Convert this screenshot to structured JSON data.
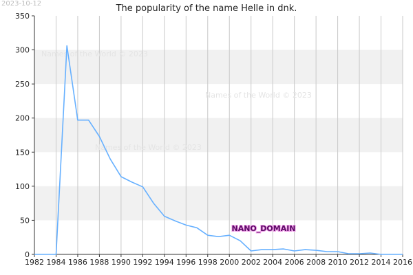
{
  "stamp": "2023-10-12",
  "watermark": "Names of the World © 2023",
  "domain_label": "NANO_DOMAIN",
  "colors": {
    "line": "#66b0ff",
    "band": "#f1f1f1",
    "grid": "#c8c8c8",
    "axis": "#333333"
  },
  "chart_data": {
    "type": "line",
    "title": "The popularity of the name Helle in dnk.",
    "xlabel": "",
    "ylabel": "",
    "xlim": [
      1982,
      2016
    ],
    "ylim": [
      0,
      350
    ],
    "x_ticks": [
      1982,
      1984,
      1986,
      1988,
      1990,
      1992,
      1994,
      1996,
      1998,
      2000,
      2002,
      2004,
      2006,
      2008,
      2010,
      2012,
      2014,
      2016
    ],
    "y_ticks": [
      0,
      50,
      100,
      150,
      200,
      250,
      300,
      350
    ],
    "grid": true,
    "series": [
      {
        "x": [
          1982,
          1983,
          1984,
          1985,
          1986,
          1987,
          1988,
          1989,
          1990,
          1991,
          1992,
          1993,
          1994,
          1995,
          1996,
          1997,
          1998,
          1999,
          2000,
          2001,
          2002,
          2003,
          2004,
          2005,
          2006,
          2007,
          2008,
          2009,
          2010,
          2011,
          2012,
          2013,
          2014,
          2015,
          2016
        ],
        "y": [
          0,
          0,
          0,
          306,
          197,
          197,
          173,
          140,
          114,
          106,
          99,
          75,
          56,
          49,
          43,
          39,
          28,
          26,
          28,
          20,
          5,
          7,
          7,
          8,
          5,
          7,
          6,
          4,
          4,
          1,
          1,
          2,
          0,
          0,
          0
        ]
      }
    ]
  }
}
